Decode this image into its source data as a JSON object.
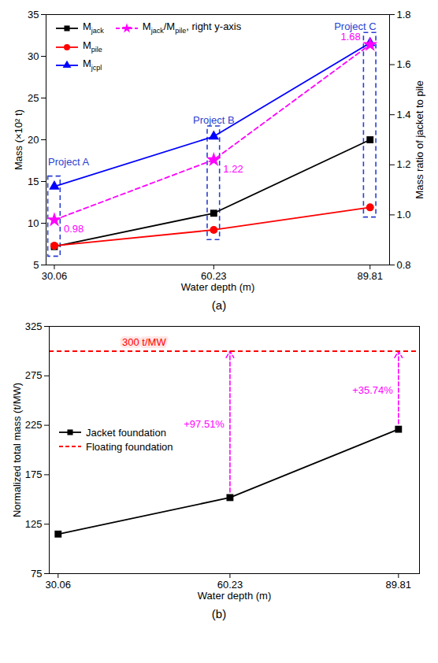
{
  "chart_data": [
    {
      "type": "line",
      "caption": "(a)",
      "x": [
        30.06,
        60.23,
        89.81
      ],
      "xlabel": "Water depth (m)",
      "xlim": [
        28.5,
        93.5
      ],
      "xticks": [
        30.06,
        60.23,
        89.81
      ],
      "ylabel": "Mass (×10² t)",
      "ylim": [
        5,
        35
      ],
      "yticks": [
        5,
        10,
        15,
        20,
        25,
        30,
        35
      ],
      "y2label": "Mass ratio of jacket to pile",
      "y2lim": [
        0.8,
        1.8
      ],
      "y2ticks": [
        0.8,
        {
          "value": 1,
          "label": "1.0"
        },
        1.2,
        1.4,
        1.6,
        1.8
      ],
      "legend": "upper left",
      "series": [
        {
          "name": "Mjack",
          "color": "#000000",
          "marker": "square",
          "line_style": "solid",
          "values": [
            7.2,
            11.2,
            20.0
          ]
        },
        {
          "name": "Mpile",
          "color": "#ff0000",
          "marker": "circle",
          "line_style": "solid",
          "values": [
            7.3,
            9.2,
            11.9
          ]
        },
        {
          "name": "Mjcpl",
          "color": "#0000ff",
          "marker": "triangle",
          "line_style": "solid",
          "values": [
            14.4,
            20.4,
            31.6
          ]
        },
        {
          "name": "Mjack/Mpile, right y-axis",
          "color": "#ff00ff",
          "marker": "star",
          "line_style": "dashed",
          "axis": "y2",
          "data_labels": true,
          "values": [
            0.98,
            1.22,
            1.68
          ]
        }
      ],
      "annotations": [
        {
          "text": "Project A",
          "x": 30.06
        },
        {
          "text": "Project B",
          "x": 60.23
        },
        {
          "text": "Project C",
          "x": 89.81
        }
      ]
    },
    {
      "type": "line",
      "caption": "(b)",
      "x": [
        30.06,
        60.23,
        89.81
      ],
      "xlabel": "Water depth (m)",
      "xlim": [
        28.5,
        93.5
      ],
      "xticks": [
        30.06,
        60.23,
        89.81
      ],
      "ylabel": "Normalized total mass (t/MW)",
      "ylim": [
        75,
        325
      ],
      "yticks": [
        75,
        125,
        175,
        225,
        275,
        325
      ],
      "legend": "center left",
      "series": [
        {
          "name": "Jacket foundation",
          "color": "#000000",
          "marker": "square",
          "line_style": "solid",
          "values": [
            115,
            151.9,
            221
          ]
        },
        {
          "name": "Floating foundation",
          "color": "#ff0000",
          "type": "hline",
          "line_style": "dashed",
          "values": [
            300,
            300,
            300
          ]
        }
      ],
      "annotations": [
        {
          "text": "300 t/MW",
          "y": 300
        },
        {
          "text": "+97.51%",
          "x": 60.23
        },
        {
          "text": "+35.74%",
          "x": 89.81
        }
      ]
    }
  ]
}
